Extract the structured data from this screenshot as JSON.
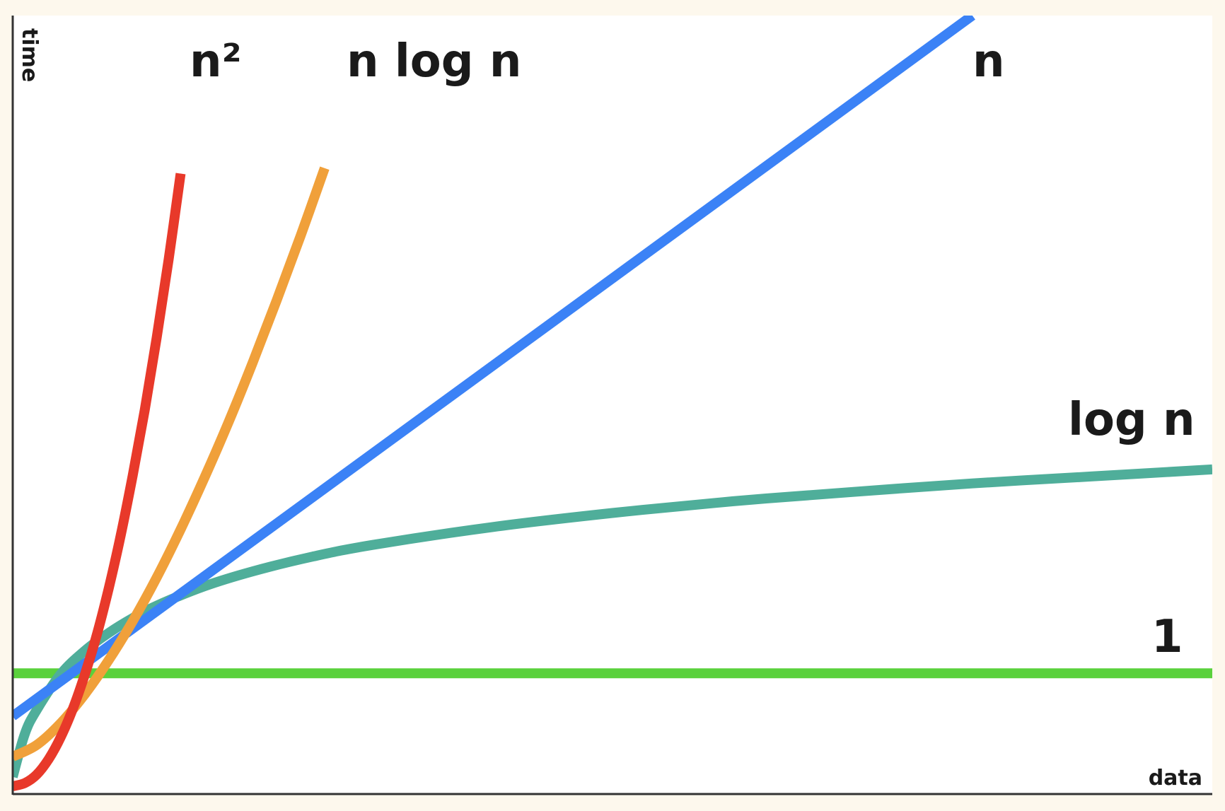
{
  "chart_data": {
    "type": "line",
    "title": "",
    "xlabel": "data",
    "ylabel": "time",
    "xlim": [
      0,
      100
    ],
    "ylim": [
      0,
      100
    ],
    "grid": false,
    "legend": "none",
    "series": [
      {
        "name": "n²",
        "key": "n2",
        "color": "#e8392a",
        "x": [
          0,
          1,
          2,
          3,
          4,
          5,
          6,
          7,
          8,
          9,
          10,
          11,
          12,
          13,
          14
        ],
        "y": [
          1.0,
          1.4,
          2.5,
          4.5,
          7.3,
          10.9,
          15.3,
          20.4,
          26.4,
          33.2,
          40.9,
          49.3,
          58.6,
          68.7,
          79.7
        ]
      },
      {
        "name": "n log n",
        "key": "nlogn",
        "color": "#f0a03a",
        "x": [
          0,
          2,
          4,
          6,
          8,
          10,
          12,
          14,
          16,
          18,
          20,
          22,
          24,
          26
        ],
        "y": [
          4.8,
          6.3,
          9.1,
          12.8,
          17.2,
          22.2,
          27.8,
          34.0,
          40.7,
          47.8,
          55.4,
          63.4,
          71.7,
          80.4
        ]
      },
      {
        "name": "n",
        "key": "n",
        "color": "#3b82f6",
        "x": [
          0,
          80
        ],
        "y": [
          10.0,
          100.0
        ]
      },
      {
        "name": "log n",
        "key": "logn",
        "color": "#4fae9a",
        "x": [
          0,
          1,
          2,
          4,
          6,
          8,
          10,
          12,
          16,
          20,
          25,
          30,
          40,
          50,
          60,
          70,
          80,
          90,
          100
        ],
        "y": [
          2.2,
          7.7,
          10.8,
          15.4,
          18.4,
          20.7,
          22.6,
          24.2,
          26.7,
          28.6,
          30.5,
          32.0,
          34.3,
          36.1,
          37.6,
          38.8,
          39.9,
          40.8,
          41.7
        ]
      },
      {
        "name": "1",
        "key": "const",
        "color": "#5ad13c",
        "x": [
          0,
          100
        ],
        "y": [
          15.5,
          15.5
        ]
      }
    ]
  }
}
